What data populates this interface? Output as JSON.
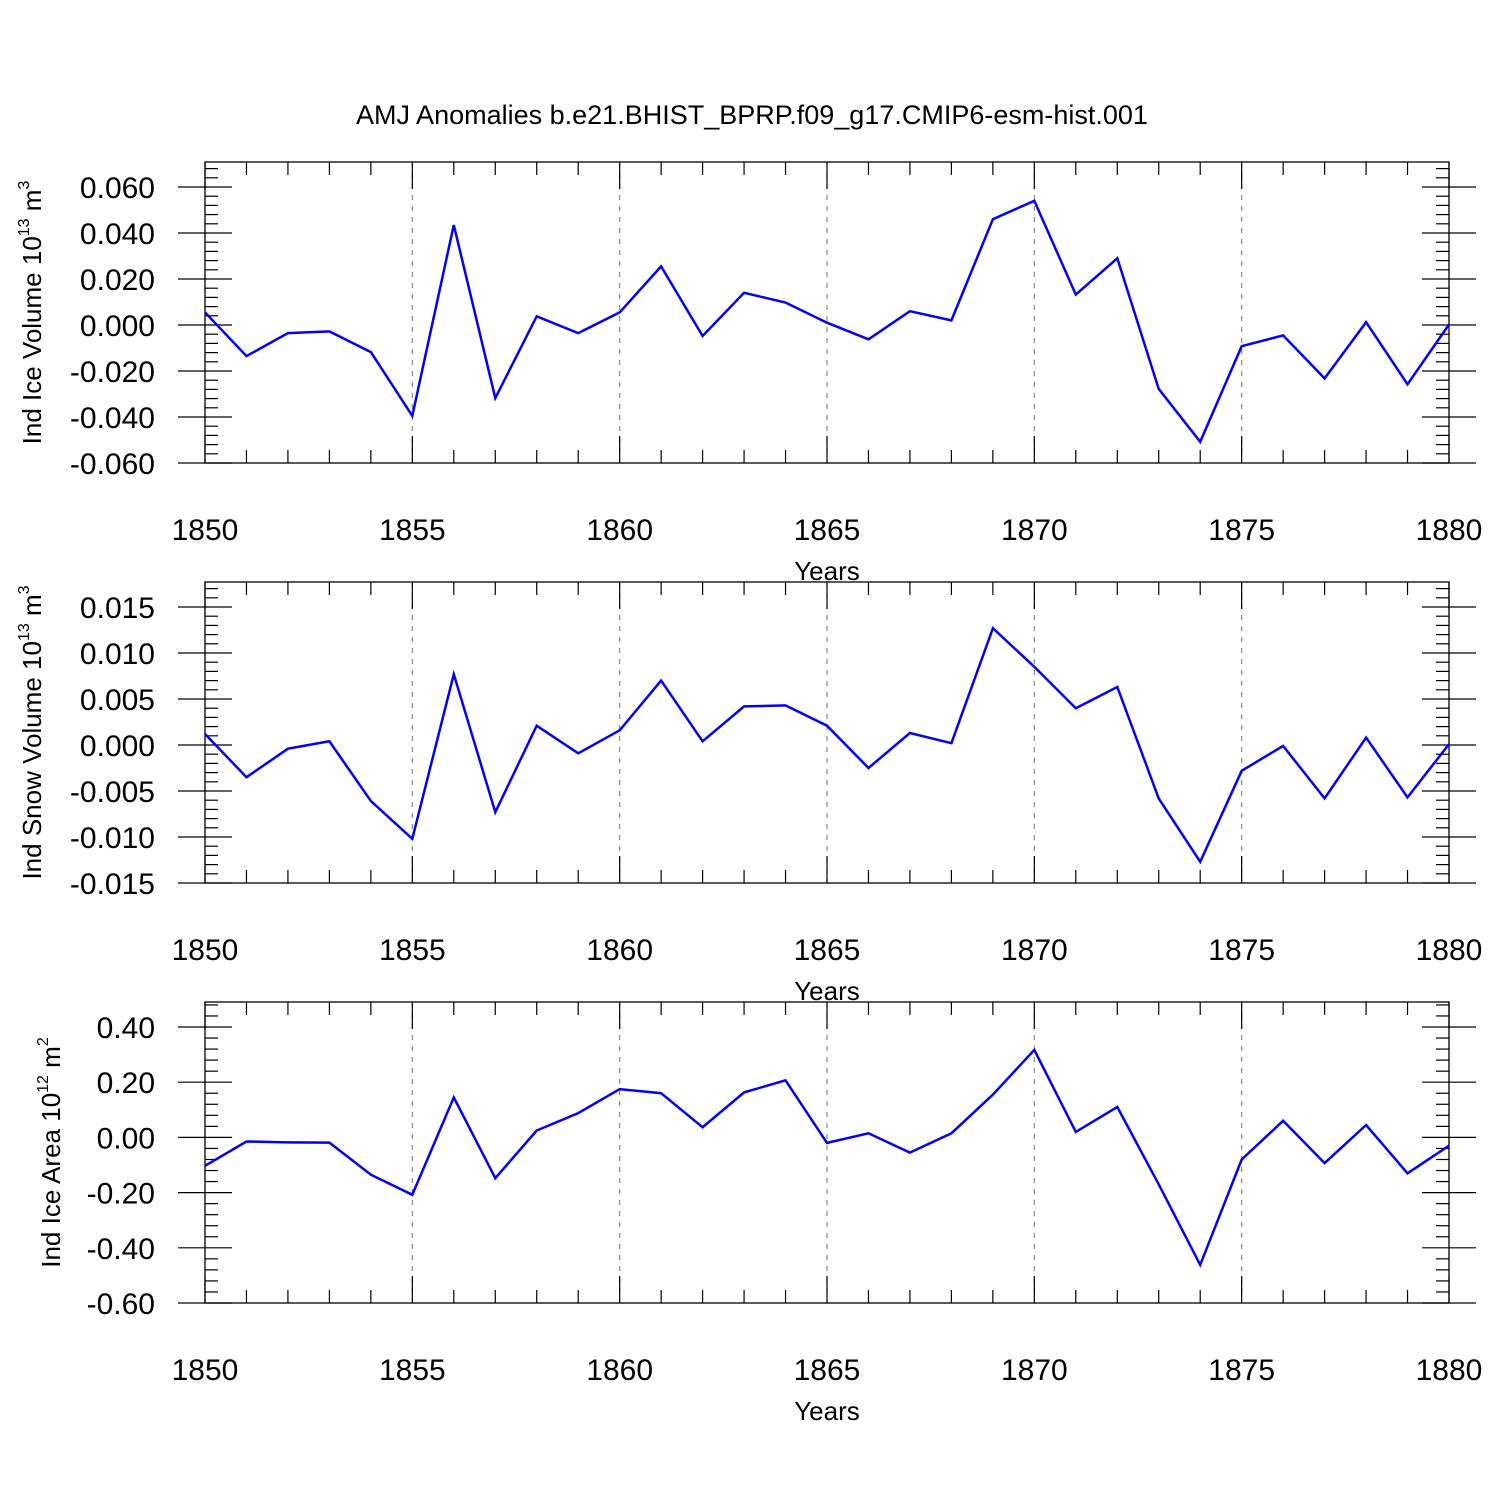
{
  "figure": {
    "title": "AMJ Anomalies b.e21.BHIST_BPRP.f09_g17.CMIP6-esm-hist.001"
  },
  "chart_data": [
    {
      "type": "line",
      "xlabel": "Years",
      "ylabel": {
        "main": "Ind Ice Volume 10",
        "sup": "13",
        "unit": " m",
        "unit_sup": "3"
      },
      "xlim": [
        1850,
        1880
      ],
      "ylim": [
        -0.06,
        0.06
      ],
      "xticks": [
        1850,
        1855,
        1860,
        1865,
        1870,
        1875,
        1880
      ],
      "xtick_labels": [
        "1850",
        "1855",
        "1860",
        "1865",
        "1870",
        "1875",
        "1880"
      ],
      "yticks": [
        -0.06,
        -0.04,
        -0.02,
        0.0,
        0.02,
        0.04,
        0.06
      ],
      "ytick_labels": [
        "-0.060",
        "-0.040",
        "-0.020",
        "0.000",
        "0.020",
        "0.040",
        "0.060"
      ],
      "grid": "vertical dashed at major x ticks",
      "color": "#0000ff",
      "x": [
        1850,
        1851,
        1852,
        1853,
        1854,
        1855,
        1856,
        1857,
        1858,
        1859,
        1860,
        1861,
        1862,
        1863,
        1864,
        1865,
        1866,
        1867,
        1868,
        1869,
        1870,
        1871,
        1872,
        1873,
        1874,
        1875,
        1876,
        1877,
        1878,
        1879,
        1880
      ],
      "y": [
        0.0055,
        -0.0135,
        -0.0035,
        -0.0028,
        -0.0118,
        -0.0395,
        0.0435,
        -0.0318,
        0.0038,
        -0.0035,
        0.0055,
        0.0255,
        -0.0048,
        0.014,
        0.0098,
        0.001,
        -0.0062,
        0.006,
        0.002,
        0.046,
        0.054,
        0.0132,
        0.029,
        -0.0278,
        -0.0508,
        -0.0092,
        -0.0045,
        -0.0232,
        0.0012,
        -0.0258,
        0.0002
      ]
    },
    {
      "type": "line",
      "xlabel": "Years",
      "ylabel": {
        "main": "Ind Snow Volume 10",
        "sup": "13",
        "unit": " m",
        "unit_sup": "3"
      },
      "xlim": [
        1850,
        1880
      ],
      "ylim": [
        -0.015,
        0.015
      ],
      "xticks": [
        1850,
        1855,
        1860,
        1865,
        1870,
        1875,
        1880
      ],
      "xtick_labels": [
        "1850",
        "1855",
        "1860",
        "1865",
        "1870",
        "1875",
        "1880"
      ],
      "yticks": [
        -0.015,
        -0.01,
        -0.005,
        0.0,
        0.005,
        0.01,
        0.015
      ],
      "ytick_labels": [
        "-0.015",
        "-0.010",
        "-0.005",
        "0.000",
        "0.005",
        "0.010",
        "0.015"
      ],
      "grid": "vertical dashed at major x ticks",
      "color": "#0000ff",
      "x": [
        1850,
        1851,
        1852,
        1853,
        1854,
        1855,
        1856,
        1857,
        1858,
        1859,
        1860,
        1861,
        1862,
        1863,
        1864,
        1865,
        1866,
        1867,
        1868,
        1869,
        1870,
        1871,
        1872,
        1873,
        1874,
        1875,
        1876,
        1877,
        1878,
        1879,
        1880
      ],
      "y": [
        0.0012,
        -0.0035,
        -0.0004,
        0.0004,
        -0.0061,
        -0.0102,
        0.0077,
        -0.0073,
        0.0021,
        -0.0009,
        0.0016,
        0.007,
        0.0004,
        0.0042,
        0.0043,
        0.0021,
        -0.0025,
        0.0013,
        0.0002,
        0.0127,
        0.0085,
        0.004,
        0.0063,
        -0.0058,
        -0.0127,
        -0.0028,
        -0.0001,
        -0.0058,
        0.0008,
        -0.0057,
        0.0001
      ]
    },
    {
      "type": "line",
      "xlabel": "Years",
      "ylabel": {
        "main": "Ind Ice Area 10",
        "sup": "12",
        "unit": " m",
        "unit_sup": "2"
      },
      "xlim": [
        1850,
        1880
      ],
      "ylim": [
        -0.6,
        0.4
      ],
      "xticks": [
        1850,
        1855,
        1860,
        1865,
        1870,
        1875,
        1880
      ],
      "xtick_labels": [
        "1850",
        "1855",
        "1860",
        "1865",
        "1870",
        "1875",
        "1880"
      ],
      "yticks": [
        -0.6,
        -0.4,
        -0.2,
        0.0,
        0.2,
        0.4
      ],
      "ytick_labels": [
        "-0.60",
        "-0.40",
        "-0.20",
        "0.00",
        "0.20",
        "0.40"
      ],
      "grid": "vertical dashed at major x ticks",
      "color": "#0000ff",
      "x": [
        1850,
        1851,
        1852,
        1853,
        1854,
        1855,
        1856,
        1857,
        1858,
        1859,
        1860,
        1861,
        1862,
        1863,
        1864,
        1865,
        1866,
        1867,
        1868,
        1869,
        1870,
        1871,
        1872,
        1873,
        1874,
        1875,
        1876,
        1877,
        1878,
        1879,
        1880
      ],
      "y": [
        -0.103,
        -0.015,
        -0.018,
        -0.019,
        -0.135,
        -0.208,
        0.145,
        -0.148,
        0.025,
        0.088,
        0.175,
        0.16,
        0.037,
        0.163,
        0.207,
        -0.02,
        0.015,
        -0.055,
        0.015,
        0.155,
        0.317,
        0.02,
        0.11,
        -0.17,
        -0.462,
        -0.08,
        0.06,
        -0.093,
        0.045,
        -0.13,
        -0.03
      ]
    }
  ]
}
